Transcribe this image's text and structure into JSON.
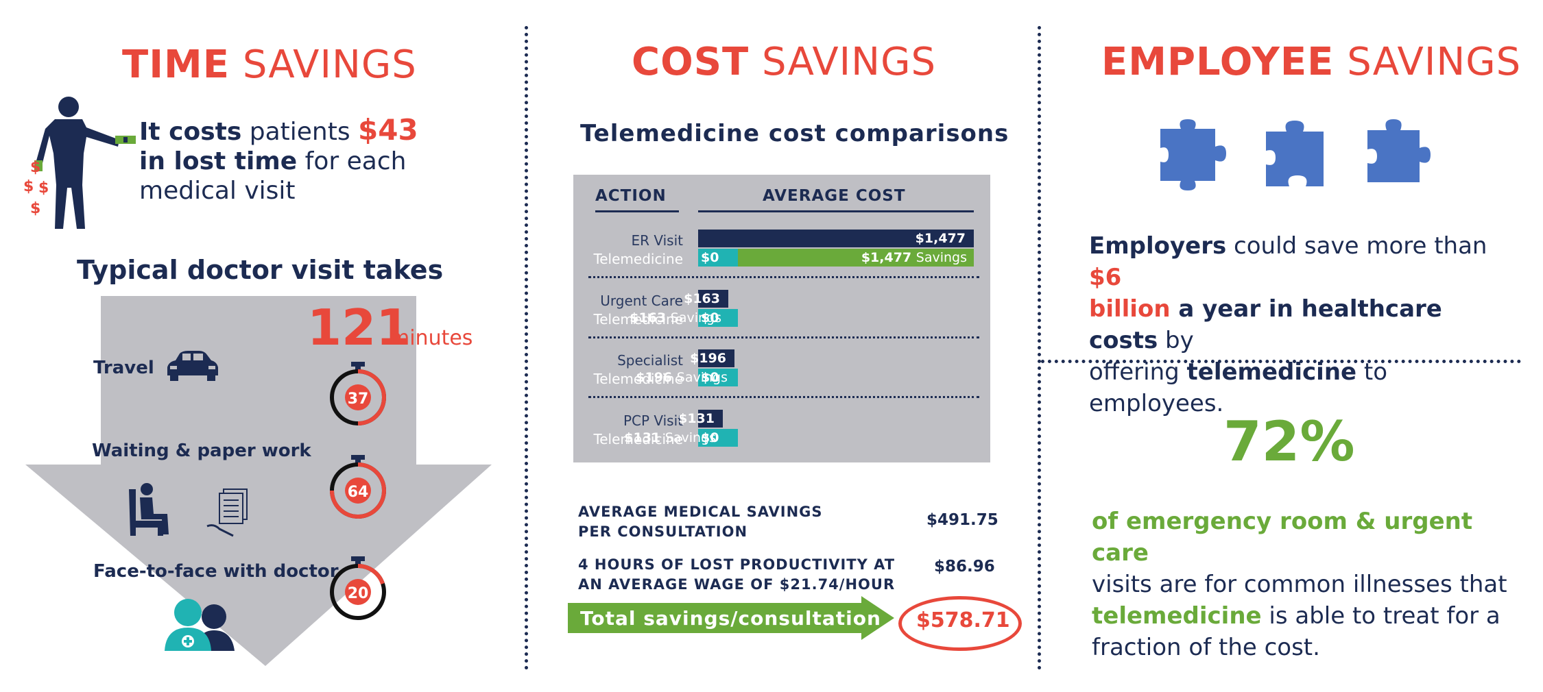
{
  "colors": {
    "navy": "#1c2b52",
    "red": "#e8483b",
    "green": "#6aaa3a",
    "teal": "#20b3b3",
    "gray": "#bfbfc4",
    "puzzle": "#4a74c4"
  },
  "time": {
    "title_bold": "TIME",
    "title_light": "SAVINGS",
    "cost_line": {
      "p1": "It costs",
      "p2": " patients ",
      "p3": "$43",
      "p4": "in lost time",
      "p5": " for each",
      "p6": "medical visit"
    },
    "visit_heading": "Typical doctor visit takes",
    "total_minutes": "121",
    "minutes_unit": "minutes",
    "stages": [
      {
        "label": "Travel",
        "minutes": "37",
        "icon": "car-icon"
      },
      {
        "label": "Waiting & paper work",
        "minutes": "64",
        "icon": "waiting-room-icon"
      },
      {
        "label": "Face-to-face with doctor",
        "minutes": "20",
        "icon": "doctor-patient-icon"
      }
    ],
    "dollar_sign": "$"
  },
  "cost": {
    "title_bold": "COST",
    "title_light": "SAVINGS",
    "subtitle": "Telemedicine cost comparisons",
    "col_action": "ACTION",
    "col_avg": "AVERAGE COST",
    "rows": [
      {
        "action": "ER Visit",
        "tele": "Telemedicine",
        "cost_label": "$1,477",
        "cost": 1477,
        "tele_cost": "$0",
        "savings_amount": "$1,477",
        "savings_word": "Savings"
      },
      {
        "action": "Urgent Care",
        "tele": "Telemedicine",
        "cost_label": "$163",
        "cost": 163,
        "tele_cost": "$0",
        "savings_amount": "$163",
        "savings_word": "Savings"
      },
      {
        "action": "Specialist",
        "tele": "Telemedicine",
        "cost_label": "$196",
        "cost": 196,
        "tele_cost": "$0",
        "savings_amount": "$196",
        "savings_word": "Savings"
      },
      {
        "action": "PCP Visit",
        "tele": "Telemedicine",
        "cost_label": "$131",
        "cost": 131,
        "tele_cost": "$0",
        "savings_amount": "$131",
        "savings_word": "Savings"
      }
    ],
    "summary": [
      {
        "line1": "AVERAGE MEDICAL SAVINGS",
        "line2": "PER CONSULTATION",
        "value": "$491.75"
      },
      {
        "line1": "4 HOURS OF LOST PRODUCTIVITY AT",
        "line2": "AN AVERAGE WAGE OF $21.74/HOUR",
        "value": "$86.96"
      }
    ],
    "total_label": "Total savings/consultation",
    "total_value": "$578.71"
  },
  "employee": {
    "title_bold": "EMPLOYEE",
    "title_light": "SAVINGS",
    "statement": {
      "s1": "Employers",
      "s2": " could save more than ",
      "s3": "$6",
      "s4": "billion",
      "s5": " a year in healthcare costs",
      "s6": " by",
      "s7": "offering ",
      "s8": "telemedicine",
      "s9": " to employees."
    },
    "percent": "72%",
    "stat": {
      "t1": "of emergency room & urgent care",
      "t2": "visits are for common illnesses that",
      "t3": "telemedicine",
      "t4": " is able to treat for a",
      "t5": "fraction of the cost."
    }
  }
}
